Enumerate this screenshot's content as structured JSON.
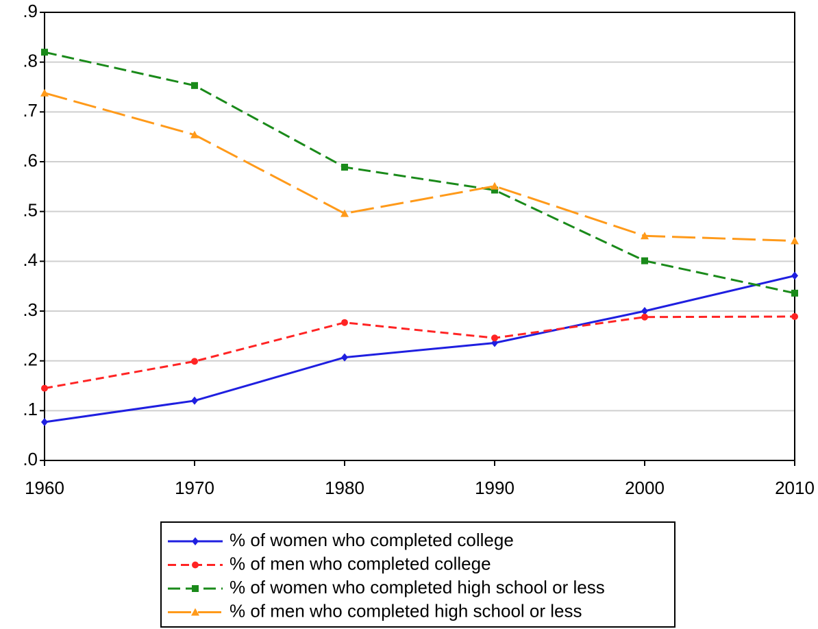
{
  "chart_data": {
    "type": "line",
    "x": [
      1960,
      1970,
      1980,
      1990,
      2000,
      2010
    ],
    "xlim": [
      1960,
      2010
    ],
    "xticks": [
      1960,
      1970,
      1980,
      1990,
      2000,
      2010
    ],
    "ylim": [
      0,
      0.9
    ],
    "yticks": [
      {
        "value": 0,
        "label": ".0"
      },
      {
        "value": 0.1,
        "label": ".1"
      },
      {
        "value": 0.2,
        "label": ".2"
      },
      {
        "value": 0.3,
        "label": ".3"
      },
      {
        "value": 0.4,
        "label": ".4"
      },
      {
        "value": 0.5,
        "label": ".5"
      },
      {
        "value": 0.6,
        "label": ".6"
      },
      {
        "value": 0.7,
        "label": ".7"
      },
      {
        "value": 0.8,
        "label": ".8"
      },
      {
        "value": 0.9,
        "label": ".9"
      }
    ],
    "grid": true,
    "legend": "bottom",
    "series": [
      {
        "name": "% of women who completed college",
        "color": "#1f1fe0",
        "dash": "solid",
        "marker": "diamond",
        "values": [
          0.077,
          0.12,
          0.207,
          0.236,
          0.3,
          0.371
        ]
      },
      {
        "name": "% of men who completed college",
        "color": "#ff2424",
        "dash": "short",
        "marker": "circle",
        "values": [
          0.145,
          0.199,
          0.277,
          0.246,
          0.288,
          0.289
        ]
      },
      {
        "name": "% of women who completed high school or less",
        "color": "#1a8a1a",
        "dash": "medium",
        "marker": "square",
        "values": [
          0.82,
          0.753,
          0.589,
          0.543,
          0.401,
          0.336
        ]
      },
      {
        "name": "% of men who completed high school or less",
        "color": "#ff9a1a",
        "dash": "long",
        "marker": "triangle",
        "values": [
          0.738,
          0.654,
          0.496,
          0.551,
          0.451,
          0.441
        ]
      }
    ]
  }
}
